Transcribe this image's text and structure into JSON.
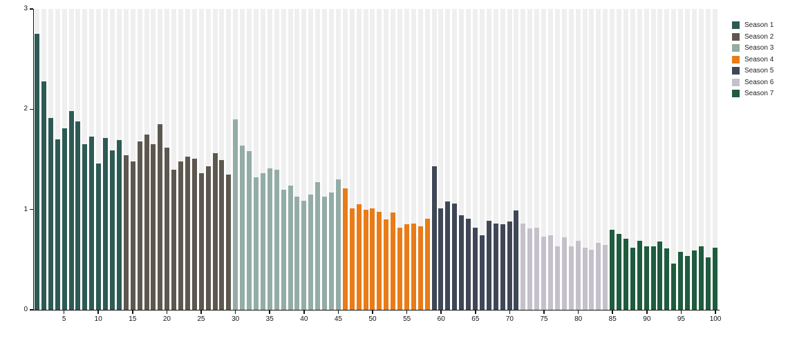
{
  "chart_data": {
    "type": "bar",
    "title": "",
    "xlabel": "",
    "ylabel": "",
    "ylim": [
      0,
      3
    ],
    "y_ticks": [
      0,
      1,
      2,
      3
    ],
    "x_ticks": [
      5,
      10,
      15,
      20,
      25,
      30,
      35,
      40,
      45,
      50,
      55,
      60,
      65,
      70,
      75,
      80,
      85,
      90,
      95,
      100
    ],
    "x_range": [
      1,
      100
    ],
    "grid": "off",
    "background_stripe_color": "#efefef",
    "legend_position": "top-right",
    "seasons": [
      {
        "name": "Season 1",
        "color": "#2d5a55",
        "values": [
          2.75,
          2.28,
          1.91,
          1.7,
          1.81,
          1.98,
          1.88,
          1.65,
          1.73,
          1.46,
          1.71,
          1.59,
          1.69
        ]
      },
      {
        "name": "Season 2",
        "color": "#5d584f",
        "values": [
          1.54,
          1.48,
          1.68,
          1.75,
          1.65,
          1.85,
          1.62,
          1.4,
          1.48,
          1.53,
          1.51,
          1.36,
          1.43,
          1.56,
          1.49,
          1.35
        ]
      },
      {
        "name": "Season 3",
        "color": "#93aca6",
        "values": [
          1.9,
          1.64,
          1.58,
          1.32,
          1.36,
          1.41,
          1.4,
          1.2,
          1.24,
          1.13,
          1.09,
          1.15,
          1.27,
          1.13,
          1.17,
          1.3
        ]
      },
      {
        "name": "Season 4",
        "color": "#e87c18",
        "values": [
          1.21,
          1.01,
          1.05,
          1.0,
          1.01,
          0.98,
          0.9,
          0.97,
          0.82,
          0.85,
          0.86,
          0.83,
          0.91
        ]
      },
      {
        "name": "Season 5",
        "color": "#3f4757",
        "values": [
          1.43,
          1.01,
          1.08,
          1.06,
          0.94,
          0.91,
          0.82,
          0.74,
          0.89,
          0.86,
          0.85,
          0.88,
          0.99
        ]
      },
      {
        "name": "Season 6",
        "color": "#c5c1cb",
        "values": [
          0.86,
          0.81,
          0.82,
          0.73,
          0.74,
          0.63,
          0.72,
          0.63,
          0.69,
          0.62,
          0.6,
          0.67,
          0.65
        ]
      },
      {
        "name": "Season 7",
        "color": "#1e5c3d",
        "values": [
          0.8,
          0.76,
          0.71,
          0.62,
          0.69,
          0.63,
          0.63,
          0.68,
          0.61,
          0.46,
          0.58,
          0.54,
          0.59,
          0.63,
          0.52,
          0.62
        ]
      }
    ]
  }
}
